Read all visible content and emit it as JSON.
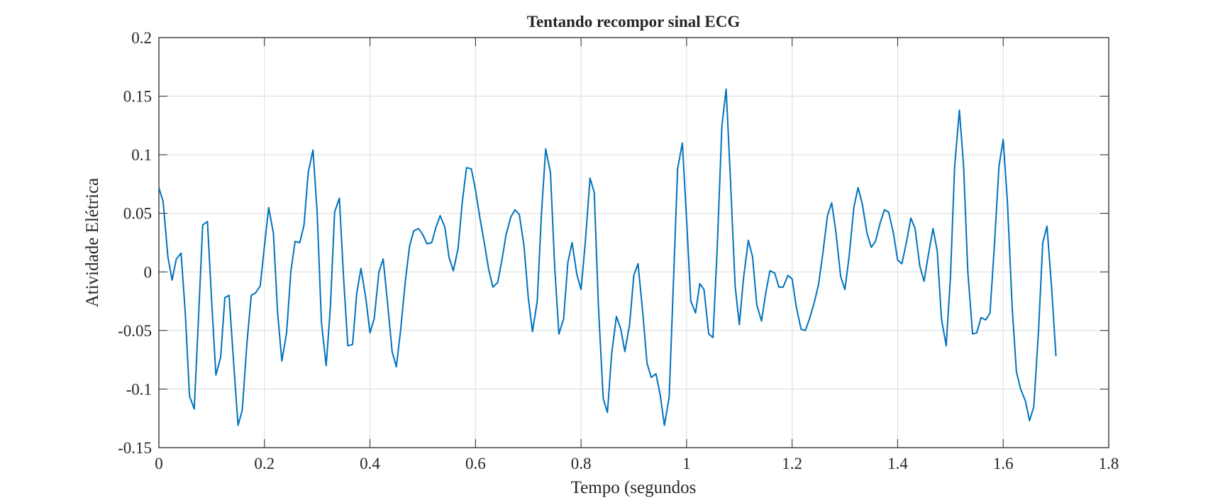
{
  "chart_data": {
    "type": "line",
    "title": "Tentando recompor sinal ECG",
    "x_label": "Tempo (segundos",
    "y_label": "Atividade Elétrica",
    "x": [
      0,
      0.008,
      0.017,
      0.025,
      0.033,
      0.042,
      0.05,
      0.058,
      0.067,
      0.075,
      0.083,
      0.092,
      0.1,
      0.108,
      0.117,
      0.125,
      0.133,
      0.142,
      0.15,
      0.158,
      0.167,
      0.175,
      0.183,
      0.192,
      0.2,
      0.208,
      0.217,
      0.225,
      0.233,
      0.242,
      0.25,
      0.258,
      0.267,
      0.275,
      0.283,
      0.292,
      0.3,
      0.308,
      0.317,
      0.325,
      0.333,
      0.342,
      0.35,
      0.358,
      0.367,
      0.375,
      0.383,
      0.392,
      0.4,
      0.408,
      0.417,
      0.425,
      0.433,
      0.442,
      0.45,
      0.458,
      0.467,
      0.475,
      0.483,
      0.492,
      0.5,
      0.508,
      0.517,
      0.525,
      0.533,
      0.542,
      0.55,
      0.558,
      0.567,
      0.575,
      0.583,
      0.592,
      0.6,
      0.608,
      0.617,
      0.625,
      0.633,
      0.642,
      0.65,
      0.658,
      0.667,
      0.675,
      0.683,
      0.692,
      0.7,
      0.708,
      0.717,
      0.725,
      0.733,
      0.742,
      0.75,
      0.758,
      0.767,
      0.775,
      0.783,
      0.792,
      0.8,
      0.808,
      0.817,
      0.825,
      0.833,
      0.842,
      0.85,
      0.858,
      0.867,
      0.875,
      0.883,
      0.892,
      0.9,
      0.908,
      0.917,
      0.925,
      0.933,
      0.942,
      0.95,
      0.958,
      0.967,
      0.975,
      0.983,
      0.992,
      1.0,
      1.008,
      1.017,
      1.025,
      1.033,
      1.042,
      1.05,
      1.058,
      1.067,
      1.075,
      1.083,
      1.092,
      1.1,
      1.108,
      1.117,
      1.125,
      1.133,
      1.142,
      1.15,
      1.158,
      1.167,
      1.175,
      1.183,
      1.192,
      1.2,
      1.208,
      1.217,
      1.225,
      1.233,
      1.242,
      1.25,
      1.258,
      1.267,
      1.275,
      1.283,
      1.292,
      1.3,
      1.308,
      1.317,
      1.325,
      1.333,
      1.342,
      1.35,
      1.358,
      1.367,
      1.375,
      1.383,
      1.392,
      1.4,
      1.408,
      1.417,
      1.425,
      1.433,
      1.442,
      1.45,
      1.458,
      1.467,
      1.475,
      1.483,
      1.492,
      1.5,
      1.508,
      1.517,
      1.525,
      1.533,
      1.542,
      1.55,
      1.558,
      1.567,
      1.575,
      1.583,
      1.592,
      1.6,
      1.608,
      1.617,
      1.625,
      1.633,
      1.642,
      1.65,
      1.658,
      1.667,
      1.675,
      1.683,
      1.692,
      1.7
    ],
    "series": [
      {
        "color": "#0072bd",
        "values": [
          0.072,
          0.06,
          0.013,
          -0.007,
          0.011,
          0.016,
          -0.035,
          -0.106,
          -0.117,
          -0.04,
          0.04,
          0.043,
          -0.025,
          -0.088,
          -0.073,
          -0.022,
          -0.02,
          -0.08,
          -0.131,
          -0.118,
          -0.06,
          -0.02,
          -0.018,
          -0.012,
          0.022,
          0.055,
          0.033,
          -0.035,
          -0.076,
          -0.052,
          0.0,
          0.026,
          0.025,
          0.04,
          0.085,
          0.104,
          0.05,
          -0.043,
          -0.08,
          -0.03,
          0.051,
          0.063,
          -0.005,
          -0.063,
          -0.062,
          -0.018,
          0.003,
          -0.022,
          -0.052,
          -0.04,
          0.0,
          0.011,
          -0.025,
          -0.068,
          -0.081,
          -0.05,
          -0.008,
          0.022,
          0.035,
          0.037,
          0.032,
          0.024,
          0.025,
          0.038,
          0.048,
          0.038,
          0.012,
          0.001,
          0.02,
          0.06,
          0.089,
          0.088,
          0.07,
          0.047,
          0.024,
          0.002,
          -0.013,
          -0.009,
          0.01,
          0.032,
          0.047,
          0.053,
          0.049,
          0.022,
          -0.022,
          -0.051,
          -0.025,
          0.05,
          0.105,
          0.085,
          0.005,
          -0.053,
          -0.04,
          0.008,
          0.025,
          -0.002,
          -0.015,
          0.025,
          0.08,
          0.068,
          -0.03,
          -0.108,
          -0.12,
          -0.07,
          -0.038,
          -0.048,
          -0.068,
          -0.045,
          -0.003,
          0.007,
          -0.035,
          -0.078,
          -0.09,
          -0.087,
          -0.105,
          -0.131,
          -0.107,
          -0.01,
          0.088,
          0.11,
          0.045,
          -0.025,
          -0.035,
          -0.01,
          -0.015,
          -0.053,
          -0.056,
          0.02,
          0.125,
          0.156,
          0.08,
          -0.012,
          -0.045,
          -0.005,
          0.027,
          0.013,
          -0.028,
          -0.042,
          -0.018,
          0.001,
          -0.001,
          -0.013,
          -0.013,
          -0.003,
          -0.006,
          -0.03,
          -0.049,
          -0.05,
          -0.04,
          -0.026,
          -0.011,
          0.015,
          0.048,
          0.059,
          0.034,
          -0.004,
          -0.015,
          0.013,
          0.055,
          0.072,
          0.058,
          0.033,
          0.021,
          0.026,
          0.042,
          0.053,
          0.051,
          0.033,
          0.01,
          0.007,
          0.026,
          0.046,
          0.037,
          0.005,
          -0.008,
          0.014,
          0.037,
          0.018,
          -0.04,
          -0.063,
          -0.005,
          0.09,
          0.138,
          0.09,
          0.0,
          -0.053,
          -0.052,
          -0.039,
          -0.041,
          -0.035,
          0.02,
          0.09,
          0.113,
          0.06,
          -0.03,
          -0.085,
          -0.1,
          -0.11,
          -0.127,
          -0.115,
          -0.05,
          0.025,
          0.039,
          -0.015,
          -0.072
        ]
      }
    ],
    "xlim": [
      0,
      1.8
    ],
    "xticks": [
      0,
      0.2,
      0.4,
      0.6,
      0.8,
      1,
      1.2,
      1.4,
      1.6,
      1.8
    ],
    "ylim": [
      -0.15,
      0.2
    ],
    "yticks": [
      -0.15,
      -0.1,
      -0.05,
      0,
      0.05,
      0.1,
      0.15,
      0.2
    ],
    "grid": true
  }
}
